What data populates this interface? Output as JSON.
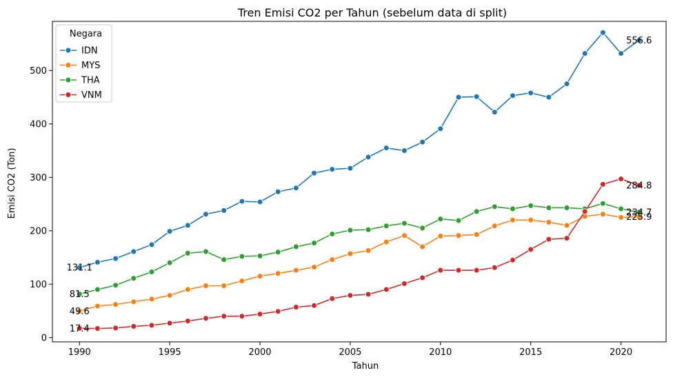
{
  "chart_data": {
    "type": "line",
    "title": "Tren Emisi CO2 per Tahun (sebelum data di split)",
    "xlabel": "Tahun",
    "ylabel": "Emisi CO2 (Ton)",
    "xlim": [
      1988.5,
      2022.5
    ],
    "ylim": [
      -8,
      592
    ],
    "x_ticks": [
      "1990",
      "1995",
      "2000",
      "2005",
      "2010",
      "2015",
      "2020"
    ],
    "y_ticks": [
      "0",
      "100",
      "200",
      "300",
      "400",
      "500"
    ],
    "grid": false,
    "legend": {
      "title": "Negara",
      "placement": "top-left"
    },
    "x": [
      1990,
      1991,
      1992,
      1993,
      1994,
      1995,
      1996,
      1997,
      1998,
      1999,
      2000,
      2001,
      2002,
      2003,
      2004,
      2005,
      2006,
      2007,
      2008,
      2009,
      2010,
      2011,
      2012,
      2013,
      2014,
      2015,
      2016,
      2017,
      2018,
      2019,
      2020,
      2021
    ],
    "series": [
      {
        "name": "IDN",
        "color": "#1f77b4",
        "values": [
          131.1,
          141,
          148,
          161,
          174,
          199,
          210,
          231,
          238,
          255,
          254,
          273,
          280,
          308,
          315,
          317,
          338,
          355,
          350,
          366,
          391,
          450,
          451,
          422,
          453,
          458,
          450,
          475,
          532,
          571,
          532,
          556.6
        ]
      },
      {
        "name": "MYS",
        "color": "#ff7f0e",
        "values": [
          49.6,
          59,
          62,
          67,
          72,
          79,
          90,
          97,
          97,
          106,
          115,
          120,
          126,
          132,
          146,
          157,
          163,
          179,
          191,
          170,
          190,
          191,
          193,
          209,
          220,
          220,
          216,
          210,
          227,
          231,
          225,
          225.9
        ]
      },
      {
        "name": "THA",
        "color": "#2ca02c",
        "values": [
          81.5,
          90,
          98,
          111,
          123,
          140,
          158,
          161,
          146,
          152,
          153,
          160,
          170,
          177,
          194,
          201,
          202,
          209,
          214,
          205,
          222,
          219,
          236,
          245,
          241,
          247,
          243,
          243,
          241,
          251,
          241,
          234.7
        ]
      },
      {
        "name": "VNM",
        "color": "#d62728",
        "values": [
          17.4,
          17,
          18,
          21,
          23,
          27,
          31,
          36,
          40,
          40,
          44,
          49,
          57,
          60,
          73,
          79,
          81,
          90,
          101,
          112,
          126,
          126,
          126,
          131,
          145,
          165,
          184,
          186,
          236,
          287,
          297,
          284.8
        ]
      }
    ],
    "annotations": [
      {
        "x": 1990,
        "y": 131.1,
        "text": "131.1"
      },
      {
        "x": 1990,
        "y": 81.5,
        "text": "81.5"
      },
      {
        "x": 1990,
        "y": 49.6,
        "text": "49.6"
      },
      {
        "x": 1990,
        "y": 17.4,
        "text": "17.4"
      },
      {
        "x": 2021,
        "y": 556.6,
        "text": "556.6"
      },
      {
        "x": 2021,
        "y": 284.8,
        "text": "284.8"
      },
      {
        "x": 2021,
        "y": 234.7,
        "text": "234.7"
      },
      {
        "x": 2021,
        "y": 225.9,
        "text": "225.9"
      }
    ]
  }
}
